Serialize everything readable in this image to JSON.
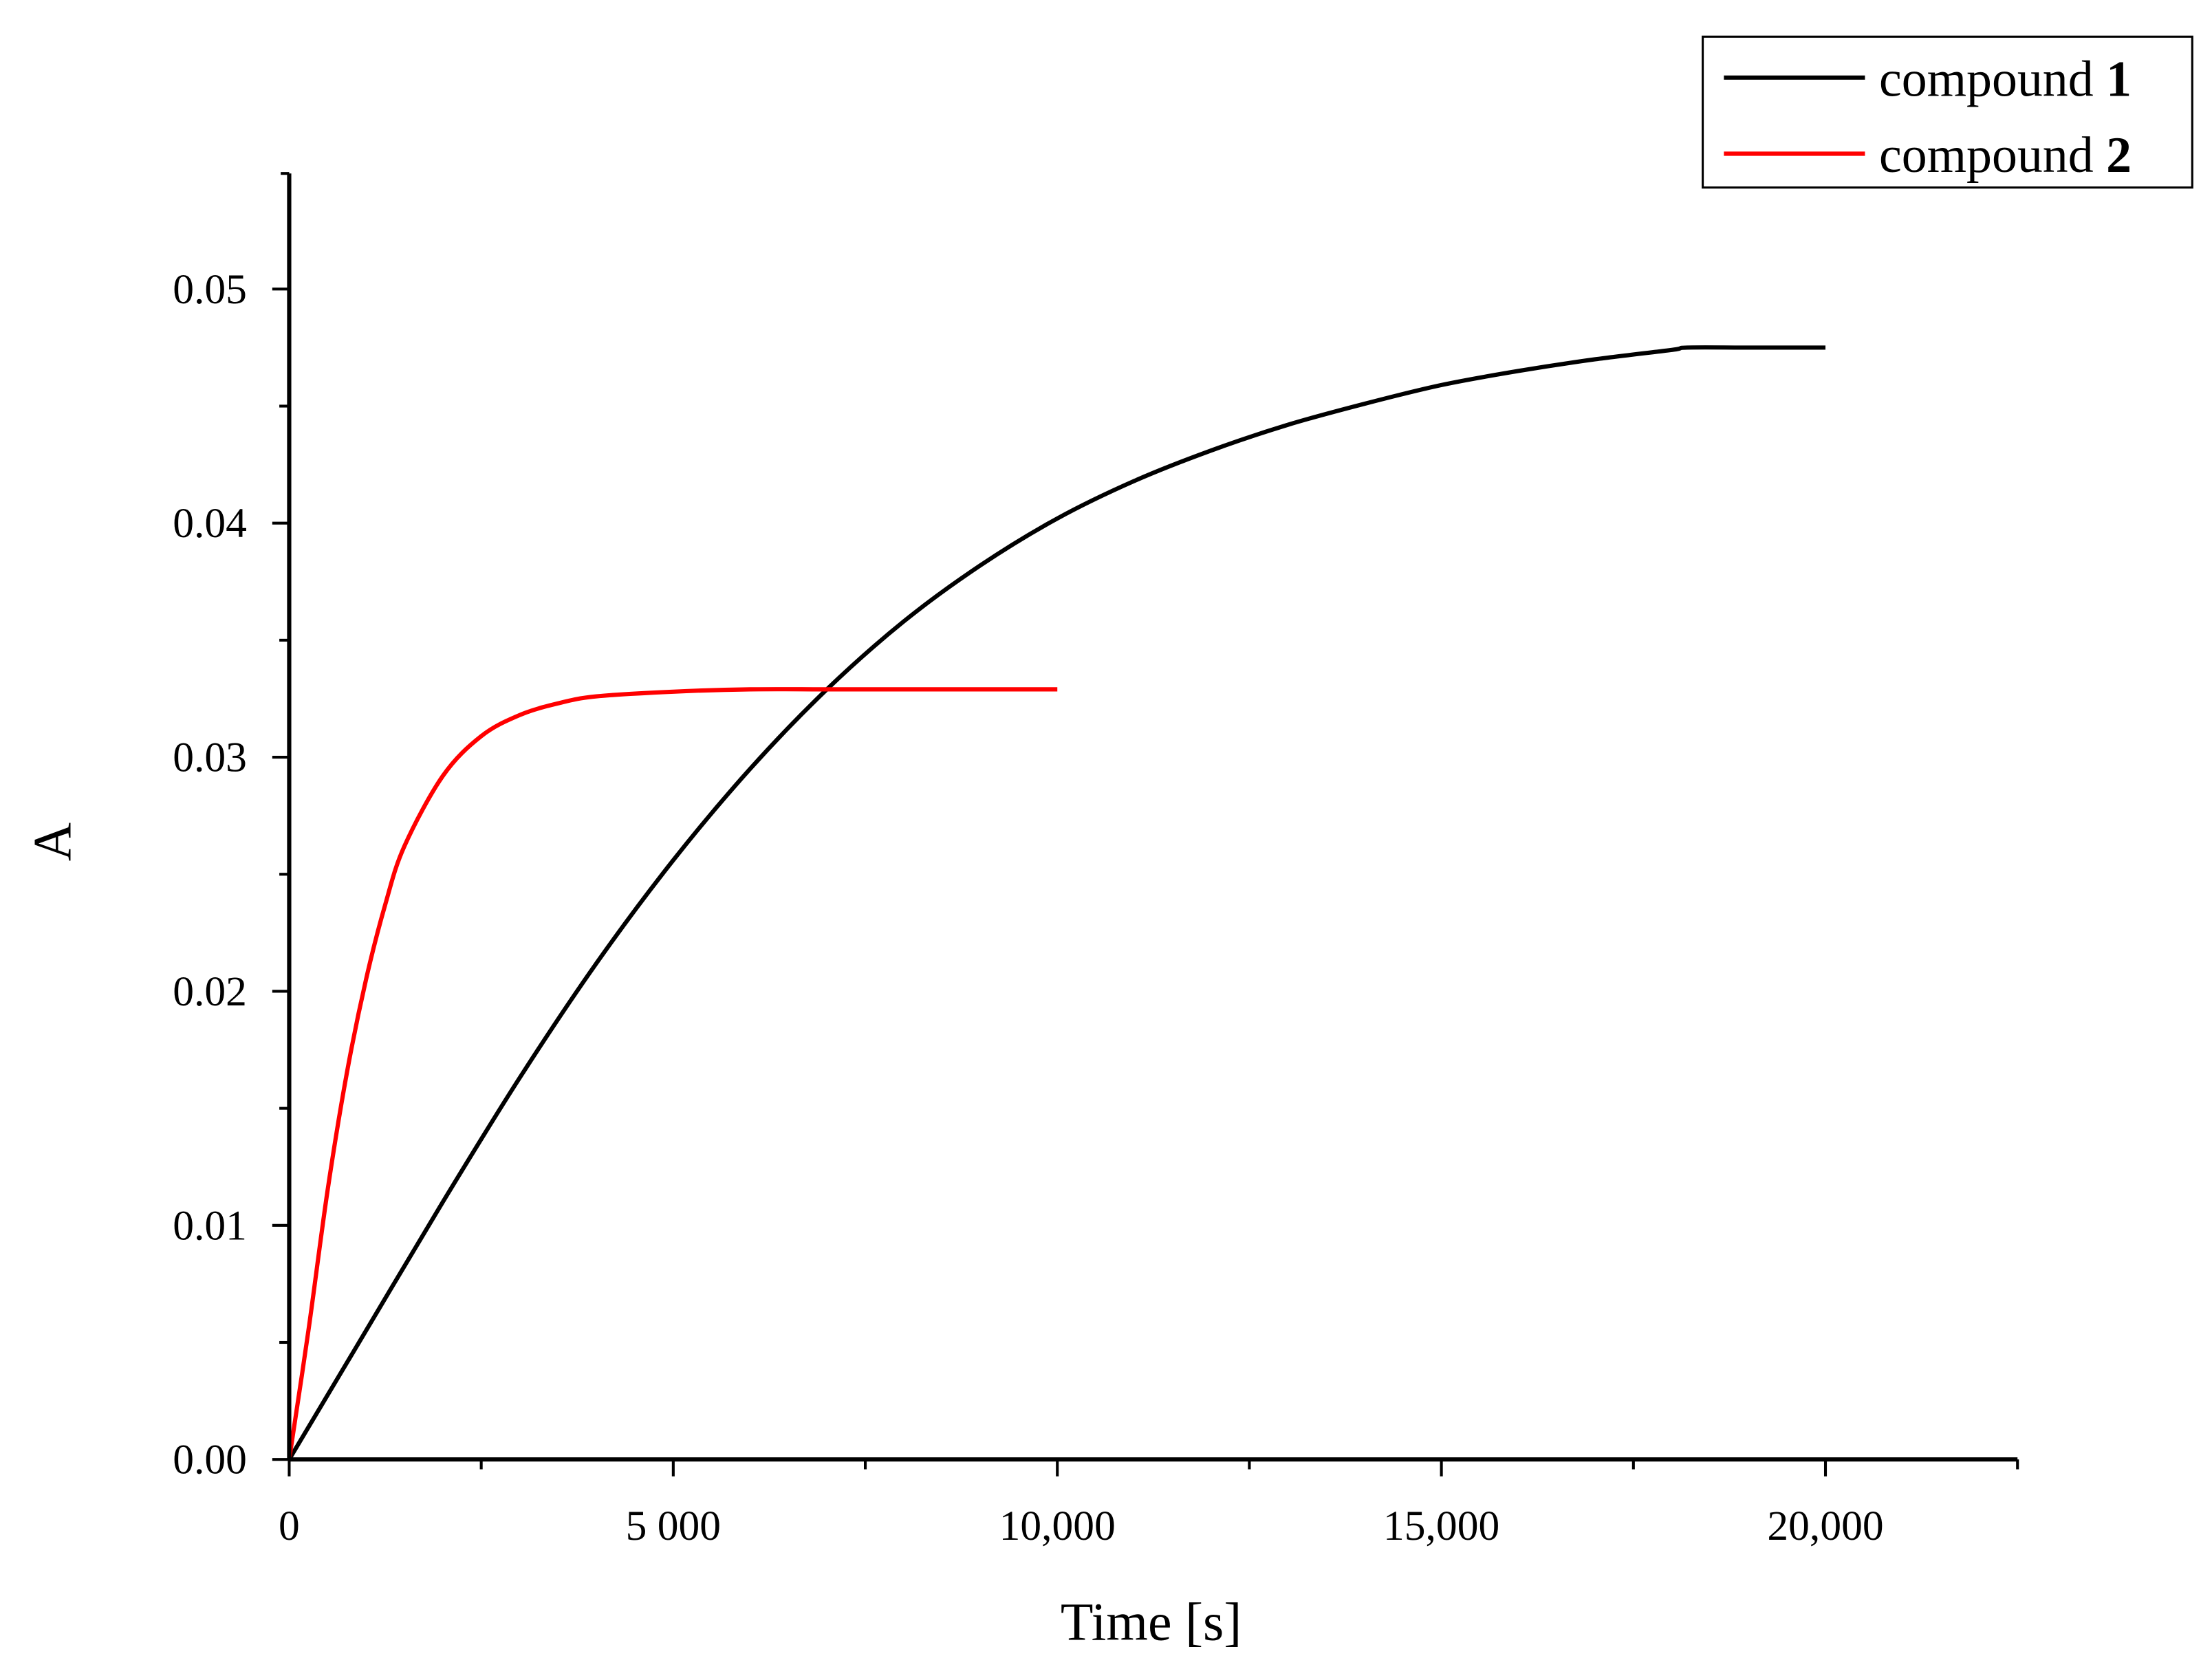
{
  "chart_data": {
    "type": "line",
    "title": "",
    "xlabel": "Time [s]",
    "ylabel": "A",
    "xlim": [
      0,
      22500
    ],
    "ylim": [
      0,
      0.055
    ],
    "x_ticks": [
      0,
      5000,
      10000,
      15000,
      20000
    ],
    "x_tick_labels": [
      "0",
      "5 000",
      "10,000",
      "15,000",
      "20,000"
    ],
    "y_ticks": [
      0.0,
      0.01,
      0.02,
      0.03,
      0.04,
      0.05
    ],
    "y_tick_labels": [
      "0.00",
      "0.01",
      "0.02",
      "0.03",
      "0.04",
      "0.05"
    ],
    "grid": false,
    "legend_position": "top-right",
    "series": [
      {
        "name": "compound 1",
        "color": "#000000",
        "x": [
          0,
          1000,
          2000,
          3000,
          4000,
          5000,
          6000,
          7000,
          8000,
          9000,
          10000,
          11000,
          12000,
          13000,
          14000,
          15000,
          16000,
          17000,
          18000,
          18200,
          19000,
          20000
        ],
        "values": [
          0.0,
          0.0055,
          0.011,
          0.0163,
          0.0212,
          0.0256,
          0.0295,
          0.0329,
          0.0358,
          0.0382,
          0.0402,
          0.0418,
          0.0431,
          0.0442,
          0.0451,
          0.0459,
          0.0465,
          0.047,
          0.0474,
          0.0475,
          0.0475,
          0.0475
        ]
      },
      {
        "name": "compound 2",
        "color": "#ff0000",
        "x": [
          0,
          250,
          500,
          750,
          1000,
          1250,
          1500,
          2000,
          2500,
          3000,
          3500,
          4000,
          5000,
          6000,
          7000,
          8000,
          9000,
          10000
        ],
        "values": [
          0.0,
          0.0055,
          0.0115,
          0.0165,
          0.0205,
          0.0237,
          0.0262,
          0.0292,
          0.0309,
          0.0318,
          0.0323,
          0.0326,
          0.0328,
          0.0329,
          0.0329,
          0.0329,
          0.0329,
          0.0329
        ]
      }
    ]
  },
  "legend": {
    "items": [
      {
        "label": "compound ",
        "num": "1",
        "color": "#000000"
      },
      {
        "label": "compound ",
        "num": "2",
        "color": "#ff0000"
      }
    ]
  },
  "axes": {
    "xlabel": "Time [s]",
    "ylabel": "A"
  }
}
